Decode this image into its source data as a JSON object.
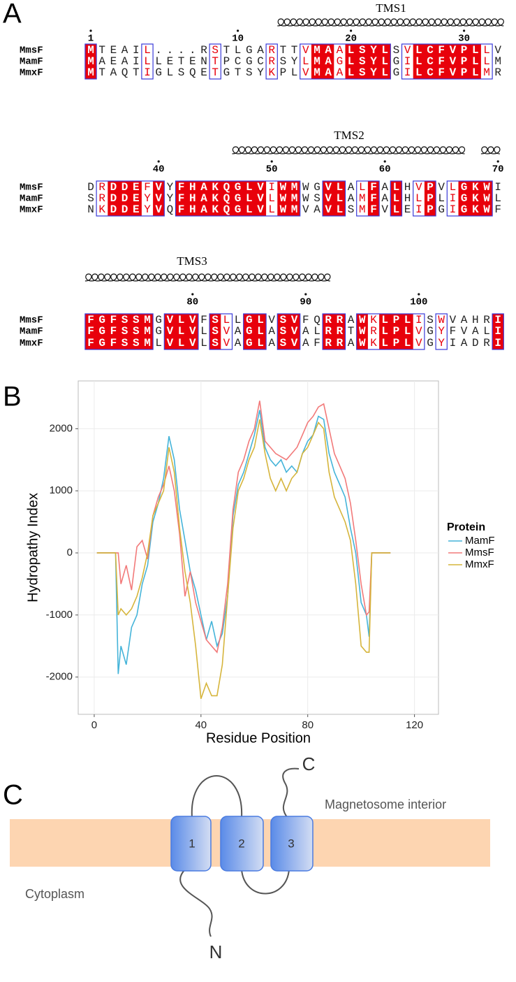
{
  "alignment": {
    "label": "A",
    "names": [
      "MmsF",
      "MamF",
      "MmxF"
    ],
    "blocks": [
      {
        "helices": [
          "TMS1"
        ],
        "ruler": [
          1,
          10,
          20,
          30
        ],
        "rows": [
          "MTEAIL....RSTLGARTTVMAALSYLSVLCFVPLLV",
          "MAEAILLETENTPCGCRSYLMAGLSYLGILCFVPLLM",
          "MTAQTIGLSQETGTSYKPLVMAALSYLGILCFVPLMR"
        ]
      },
      {
        "helices": [
          "TMS2"
        ],
        "ruler": [
          40,
          50,
          60,
          70
        ],
        "rows": [
          "DRDDEFVYFHAKQGLVIWMWGVLALFALHVPVLGKWI",
          "SRDDEYVYFHAKQGLVLWMWSVLAMFALHLPLIGKWL",
          "NKDDEYVQFHAKQGLVLWMVAVLSMFVLEIPGIGKWF"
        ]
      },
      {
        "helices": [
          "TMS3"
        ],
        "ruler": [
          80,
          90,
          100
        ],
        "rows": [
          "FGFSSMGVLVFSLLGLVSVFQRRAWKLPLISWVAHRI",
          "FGFSSMGVLVLSVAGLASVALRRTWRLPLVGYFVALI",
          "FGFSSMLVLVLSVAGLASVAFRRAWKLPLVGYIADRI"
        ]
      }
    ]
  },
  "chart_data": {
    "type": "line",
    "label": "B",
    "x_label": "Residue Position",
    "y_label": "Hydropathy Index",
    "legend_title": "Protein",
    "legend": "right",
    "grid": true,
    "xlim": [
      -6,
      129
    ],
    "ylim": [
      -2600,
      2770
    ],
    "xticks": [
      0,
      40,
      80,
      120
    ],
    "yticks": [
      -2000,
      -1000,
      0,
      1000,
      2000
    ],
    "x": [
      1,
      8,
      9,
      10,
      12,
      14,
      16,
      18,
      20,
      22,
      24,
      26,
      28,
      30,
      32,
      34,
      36,
      38,
      40,
      42,
      44,
      46,
      48,
      50,
      52,
      54,
      56,
      58,
      60,
      62,
      64,
      66,
      68,
      70,
      72,
      74,
      76,
      78,
      80,
      82,
      84,
      86,
      88,
      90,
      92,
      94,
      96,
      98,
      100,
      102,
      103,
      104,
      111
    ],
    "series": [
      {
        "name": "MamF",
        "color": "#45b4d9",
        "values": [
          0,
          0,
          -1950,
          -1500,
          -1800,
          -1200,
          -1000,
          -500,
          -200,
          500,
          800,
          1200,
          1880,
          1500,
          700,
          200,
          -300,
          -600,
          -1000,
          -1400,
          -1100,
          -1500,
          -1300,
          -700,
          600,
          1100,
          1300,
          1600,
          1900,
          2300,
          1700,
          1500,
          1400,
          1500,
          1300,
          1400,
          1300,
          1600,
          1800,
          1900,
          2200,
          2150,
          1600,
          1300,
          1100,
          900,
          400,
          0,
          -800,
          -1000,
          -1350,
          0,
          0
        ]
      },
      {
        "name": "MmsF",
        "color": "#f27a7a",
        "values": [
          0,
          0,
          0,
          -500,
          -200,
          -600,
          100,
          200,
          -100,
          600,
          900,
          1100,
          1400,
          1000,
          300,
          -700,
          -300,
          -800,
          -1100,
          -1400,
          -1500,
          -1600,
          -1200,
          -500,
          700,
          1300,
          1500,
          1800,
          2000,
          2450,
          1800,
          1700,
          1600,
          1550,
          1500,
          1600,
          1700,
          1900,
          2100,
          2200,
          2350,
          2400,
          2000,
          1600,
          1400,
          1200,
          800,
          200,
          -500,
          -1000,
          -950,
          0,
          0
        ]
      },
      {
        "name": "MmxF",
        "color": "#d6b53c",
        "values": [
          0,
          0,
          -1000,
          -900,
          -1000,
          -900,
          -700,
          -400,
          0,
          600,
          800,
          1000,
          1700,
          1300,
          400,
          -300,
          -800,
          -1500,
          -2350,
          -2100,
          -2300,
          -2300,
          -1800,
          -700,
          400,
          1000,
          1200,
          1500,
          1700,
          2150,
          1600,
          1200,
          1000,
          1200,
          1000,
          1200,
          1300,
          1600,
          1700,
          1900,
          2100,
          2000,
          1300,
          900,
          700,
          500,
          200,
          -500,
          -1500,
          -1600,
          -1600,
          0,
          0
        ]
      }
    ]
  },
  "topology": {
    "label": "C",
    "interior": "Magnetosome interior",
    "cytoplasm": "Cytoplasm",
    "helices": [
      "1",
      "2",
      "3"
    ],
    "n_terminus": "N",
    "c_terminus": "C"
  }
}
